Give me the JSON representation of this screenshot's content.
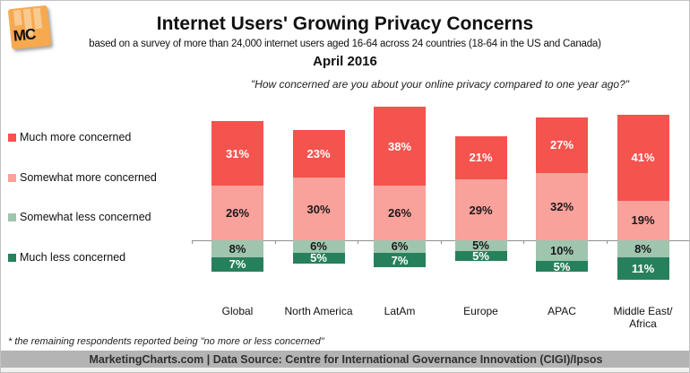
{
  "header": {
    "logo_text": "MC",
    "title": "Internet Users' Growing Privacy Concerns",
    "subtitle": "based on a survey of more than 24,000 internet users aged 16-64 across 24 countries (18-64 in the US and Canada)",
    "date": "April 2016",
    "question": "\"How concerned are you about your online privacy compared to one year ago?\""
  },
  "chart_data": {
    "type": "bar",
    "stacked": true,
    "diverging": "more-concerned series stack above the baseline, less-concerned series stack below",
    "value_suffix": "%",
    "categories": [
      "Global",
      "North America",
      "LatAm",
      "Europe",
      "APAC",
      "Middle East/ Africa"
    ],
    "series": [
      {
        "name": "Much more concerned",
        "color": "#f4534e",
        "label_color": "#ffffff",
        "values": [
          31,
          23,
          38,
          21,
          27,
          41
        ]
      },
      {
        "name": "Somewhat more concerned",
        "color": "#f9a19b",
        "label_color": "#1a1a1a",
        "values": [
          26,
          30,
          26,
          29,
          32,
          19
        ]
      },
      {
        "name": "Somewhat less concerned",
        "color": "#9fc5ae",
        "label_color": "#1a1a1a",
        "values": [
          8,
          6,
          6,
          5,
          10,
          8
        ]
      },
      {
        "name": "Much less concerned",
        "color": "#27805c",
        "label_color": "#ffffff",
        "values": [
          7,
          5,
          7,
          5,
          5,
          11
        ]
      }
    ],
    "legend_position": "left",
    "baseline": 0,
    "grid": false
  },
  "colors": {
    "logo_orange": "#f6a94f",
    "axis": "#8f8f8f",
    "footer_bar_bg": "#b4b4b4"
  },
  "footnote": "* the remaining respondents reported being \"no more or less concerned\"",
  "footer": {
    "text": "MarketingCharts.com | Data Source: Centre for International Governance Innovation (CIGI)/Ipsos"
  }
}
